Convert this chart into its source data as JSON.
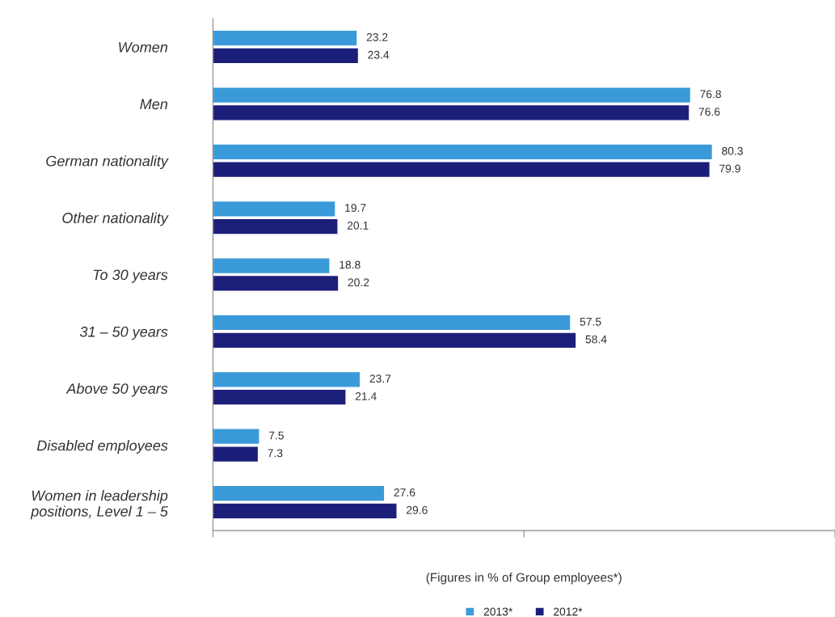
{
  "chart_data": {
    "type": "bar",
    "orientation": "horizontal",
    "xlabel": "(Figures in % of Group employees*)",
    "categories": [
      "Women",
      "Men",
      "German nationality",
      "Other nationality",
      "To 30 years",
      "31 – 50 years",
      "Above 50 years",
      "Disabled employees",
      "Women in leadership\npositions, Level 1 – 5"
    ],
    "series": [
      {
        "name": "2013*",
        "color": "#3a9ad9",
        "values": [
          23.2,
          76.8,
          80.3,
          19.7,
          18.8,
          57.5,
          23.7,
          7.5,
          27.6
        ]
      },
      {
        "name": "2012*",
        "color": "#1c1f7a",
        "values": [
          23.4,
          76.6,
          79.9,
          20.1,
          20.2,
          58.4,
          21.4,
          7.3,
          29.6
        ]
      }
    ],
    "xlim": [
      0,
      100
    ],
    "xticks": [
      {
        "value": 0,
        "label": null
      },
      {
        "value": 50,
        "label": null
      },
      {
        "value": 100,
        "label": null
      }
    ],
    "data_labels": true,
    "legend": "bottom",
    "grid": false
  }
}
